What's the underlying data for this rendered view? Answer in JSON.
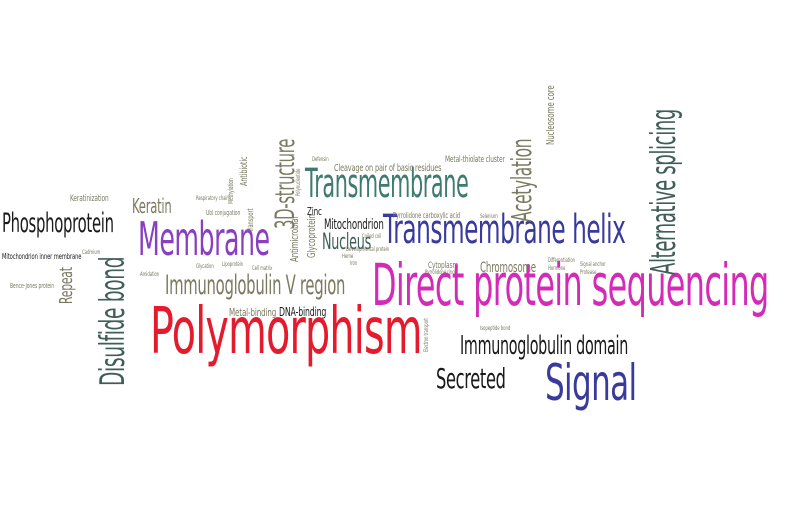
{
  "colors": {
    "black": "#1a1a1a",
    "olive": "#7a7a60",
    "teal": "#3d7a70",
    "slate": "#3f5e58",
    "purple": "#8a3fc0",
    "navy": "#3a3a9c",
    "red": "#e41b2c",
    "magenta": "#d42ab8"
  },
  "words": {
    "polymorphism": "Polymorphism",
    "direct_protein_sequencing": "Direct protein sequencing",
    "transmembrane_helix": "Transmembrane helix",
    "transmembrane": "Transmembrane",
    "membrane": "Membrane",
    "signal": "Signal",
    "phosphoprotein": "Phosphoprotein",
    "disulfide_bond": "Disulfide bond",
    "alternative_splicing": "Alternative splicing",
    "immunoglobulin_v_region": "Immunoglobulin V region",
    "immunoglobulin_domain": "Immunoglobulin domain",
    "secreted": "Secreted",
    "acetylation": "Acetylation",
    "three_d_structure": "3D-structure",
    "nucleus": "Nucleus",
    "keratin": "Keratin",
    "repeat": "Repeat",
    "chromosome": "Chromosome",
    "mitochondrion": "Mitochondrion",
    "glycoprotein": "Glycoprotein",
    "nucleosome_core": "Nucleosome core",
    "dna_binding": "DNA-binding",
    "metal_binding": "Metal-binding",
    "antimicrobial": "Antimicrobial",
    "antibiotic": "Antibiotic",
    "zinc": "Zinc",
    "keratinization": "Keratinization",
    "cadmium": "Cadmium",
    "mitochondrion_inner_membrane": "Mitochondrion inner membrane",
    "bence_jones_protein": "Bence-Jones protein",
    "cleavage_basic_residues": "Cleavage on pair of basic residues",
    "metal_thiolate_cluster": "Metal-thiolate cluster",
    "pyrrolidone_carboxylic_acid": "Pyrrolidone carboxylic acid",
    "cytoplasm": "Cytoplasm",
    "defensin": "Defensin",
    "methylation": "Methylation",
    "transport": "Transport",
    "ubl_conjugation": "Ubl conjugation",
    "respiratory_chain": "Respiratory chain",
    "electron_transport": "Electron transport",
    "hormone": "Hormone",
    "coiled_coil": "Coiled coil",
    "cell_matrix": "Cell matrix",
    "polynucleotide": "Polynucleotide",
    "isopeptide_bond": "Isopeptide bond",
    "differentiation": "Differentiation",
    "developmental_protein": "Developmental protein",
    "selenium": "Selenium",
    "glycation": "Glycation",
    "lipoprotein": "Lipoprotein",
    "heme": "Heme",
    "iron": "Iron",
    "pyrrolidone_rim": "Pyrrolidone ring",
    "signal_anchor": "Signal anchor",
    "protease": "Protease",
    "amidation": "Amidation"
  }
}
